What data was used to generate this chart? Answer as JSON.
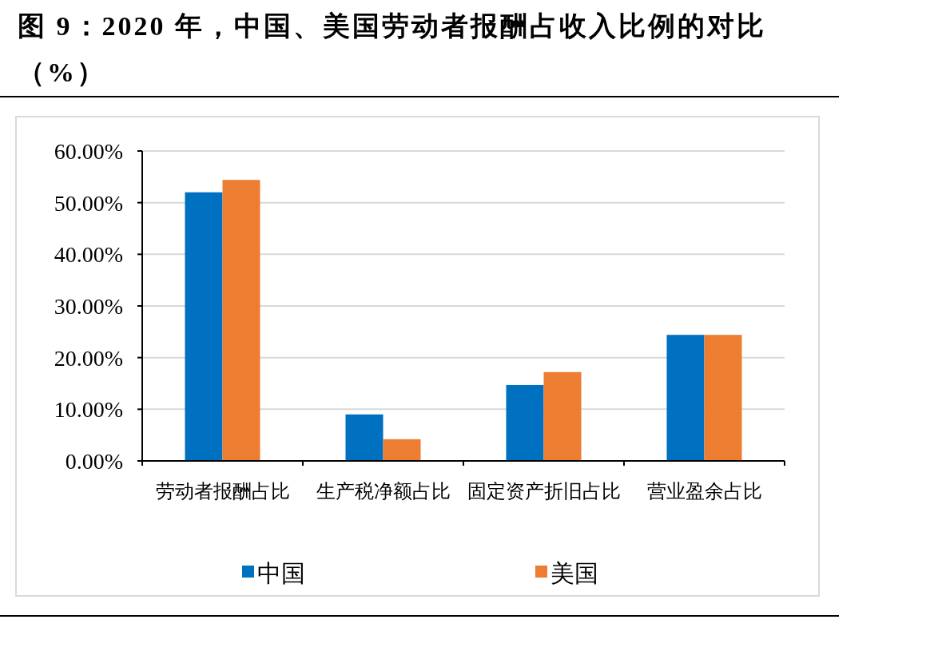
{
  "chart_data": {
    "type": "bar",
    "title": "图 9：2020 年，中国、美国劳动者报酬占收入比例的对比（%）",
    "categories": [
      "劳动者报酬占比",
      "生产税净额占比",
      "固定资产折旧占比",
      "营业盈余占比"
    ],
    "series": [
      {
        "name": "中国",
        "color": "#0070c0",
        "values": [
          52.0,
          9.0,
          14.7,
          24.4
        ]
      },
      {
        "name": "美国",
        "color": "#ed7d31",
        "values": [
          54.4,
          4.2,
          17.2,
          24.4
        ]
      }
    ],
    "ylim": [
      0,
      60
    ],
    "yticks": [
      {
        "value": 0,
        "label": "0.00%"
      },
      {
        "value": 10,
        "label": "10.00%"
      },
      {
        "value": 20,
        "label": "20.00%"
      },
      {
        "value": 30,
        "label": "30.00%"
      },
      {
        "value": 40,
        "label": "40.00%"
      },
      {
        "value": 50,
        "label": "50.00%"
      },
      {
        "value": 60,
        "label": "60.00%"
      }
    ],
    "grid": "y",
    "legend": "bottom"
  }
}
